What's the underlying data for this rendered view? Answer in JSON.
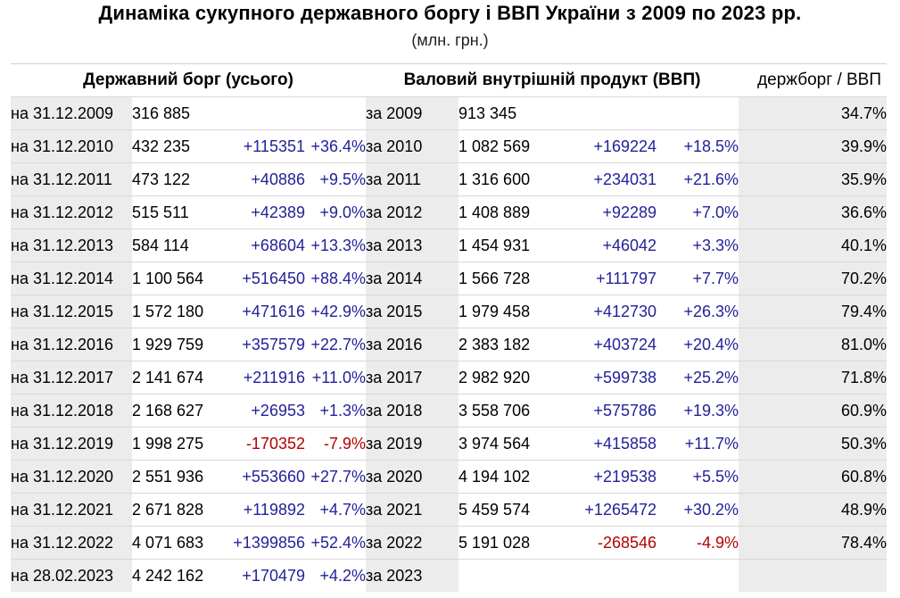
{
  "title": "Динаміка сукупного державного боргу і ВВП України з 2009 по 2023 рр.",
  "subtitle": "(млн. грн.)",
  "headers": {
    "debt": "Державний борг (усього)",
    "gdp": "Валовий внутрішній продукт (ВВП)",
    "ratio": "держборг / ВВП"
  },
  "rows": [
    {
      "date": "на 31.12.2009",
      "debt": "316 885",
      "debt_change": "",
      "debt_pct": "",
      "period": "за 2009",
      "gdp": "913 345",
      "gdp_change": "",
      "gdp_pct": "",
      "ratio": "34.7%"
    },
    {
      "date": "на 31.12.2010",
      "debt": "432 235",
      "debt_change": "+115351",
      "debt_pct": "+36.4%",
      "period": "за 2010",
      "gdp": "1 082 569",
      "gdp_change": "+169224",
      "gdp_pct": "+18.5%",
      "ratio": "39.9%"
    },
    {
      "date": "на 31.12.2011",
      "debt": "473 122",
      "debt_change": "+40886",
      "debt_pct": "+9.5%",
      "period": "за 2011",
      "gdp": "1 316 600",
      "gdp_change": "+234031",
      "gdp_pct": "+21.6%",
      "ratio": "35.9%"
    },
    {
      "date": "на 31.12.2012",
      "debt": "515 511",
      "debt_change": "+42389",
      "debt_pct": "+9.0%",
      "period": "за 2012",
      "gdp": "1 408 889",
      "gdp_change": "+92289",
      "gdp_pct": "+7.0%",
      "ratio": "36.6%"
    },
    {
      "date": "на 31.12.2013",
      "debt": "584 114",
      "debt_change": "+68604",
      "debt_pct": "+13.3%",
      "period": "за 2013",
      "gdp": "1 454 931",
      "gdp_change": "+46042",
      "gdp_pct": "+3.3%",
      "ratio": "40.1%"
    },
    {
      "date": "на 31.12.2014",
      "debt": "1 100 564",
      "debt_change": "+516450",
      "debt_pct": "+88.4%",
      "period": "за 2014",
      "gdp": "1 566 728",
      "gdp_change": "+111797",
      "gdp_pct": "+7.7%",
      "ratio": "70.2%"
    },
    {
      "date": "на 31.12.2015",
      "debt": "1 572 180",
      "debt_change": "+471616",
      "debt_pct": "+42.9%",
      "period": "за 2015",
      "gdp": "1 979 458",
      "gdp_change": "+412730",
      "gdp_pct": "+26.3%",
      "ratio": "79.4%"
    },
    {
      "date": "на 31.12.2016",
      "debt": "1 929 759",
      "debt_change": "+357579",
      "debt_pct": "+22.7%",
      "period": "за 2016",
      "gdp": "2 383 182",
      "gdp_change": "+403724",
      "gdp_pct": "+20.4%",
      "ratio": "81.0%"
    },
    {
      "date": "на 31.12.2017",
      "debt": "2 141 674",
      "debt_change": "+211916",
      "debt_pct": "+11.0%",
      "period": "за 2017",
      "gdp": "2 982 920",
      "gdp_change": "+599738",
      "gdp_pct": "+25.2%",
      "ratio": "71.8%"
    },
    {
      "date": "на 31.12.2018",
      "debt": "2 168 627",
      "debt_change": "+26953",
      "debt_pct": "+1.3%",
      "period": "за 2018",
      "gdp": "3 558 706",
      "gdp_change": "+575786",
      "gdp_pct": "+19.3%",
      "ratio": "60.9%"
    },
    {
      "date": "на 31.12.2019",
      "debt": "1 998 275",
      "debt_change": "-170352",
      "debt_pct": "-7.9%",
      "period": "за 2019",
      "gdp": "3 974 564",
      "gdp_change": "+415858",
      "gdp_pct": "+11.7%",
      "ratio": "50.3%"
    },
    {
      "date": "на 31.12.2020",
      "debt": "2 551 936",
      "debt_change": "+553660",
      "debt_pct": "+27.7%",
      "period": "за 2020",
      "gdp": "4 194 102",
      "gdp_change": "+219538",
      "gdp_pct": "+5.5%",
      "ratio": "60.8%"
    },
    {
      "date": "на 31.12.2021",
      "debt": "2 671 828",
      "debt_change": "+119892",
      "debt_pct": "+4.7%",
      "period": "за 2021",
      "gdp": "5 459 574",
      "gdp_change": "+1265472",
      "gdp_pct": "+30.2%",
      "ratio": "48.9%"
    },
    {
      "date": "на 31.12.2022",
      "debt": "4 071 683",
      "debt_change": "+1399856",
      "debt_pct": "+52.4%",
      "period": "за 2022",
      "gdp": "5 191 028",
      "gdp_change": "-268546",
      "gdp_pct": "-4.9%",
      "ratio": "78.4%"
    },
    {
      "date": "на 28.02.2023",
      "debt": "4 242 162",
      "debt_change": "+170479",
      "debt_pct": "+4.2%",
      "period": "за 2023",
      "gdp": "",
      "gdp_change": "",
      "gdp_pct": "",
      "ratio": ""
    }
  ]
}
